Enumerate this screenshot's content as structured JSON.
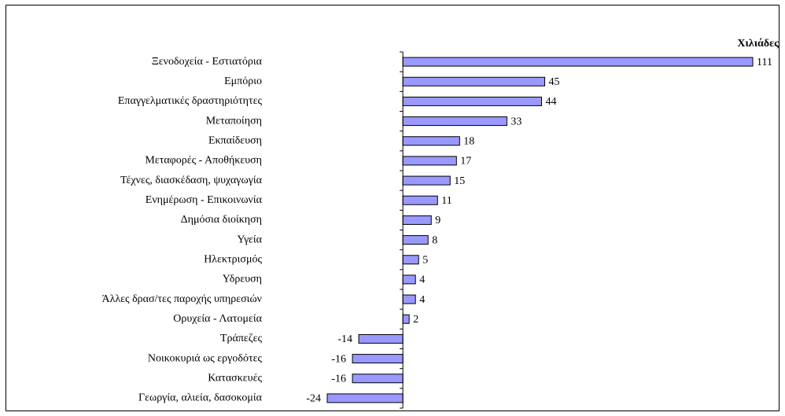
{
  "chart_data": {
    "type": "barh",
    "unit_label": "Χιλιάδες",
    "color": "#9999ff",
    "categories": [
      "Ξενοδοχεία - Εστιατόρια",
      "Εμπόριο",
      "Επαγγελματικές δραστηριότητες",
      "Μεταποίηση",
      "Εκπαίδευση",
      "Μεταφορές - Αποθήκευση",
      "Τέχνες, διασκέδαση, ψυχαγωγία",
      "Ενημέρωση - Επικοινωνία",
      "Δημόσια διοίκηση",
      "Υγεία",
      "Ηλεκτρισμός",
      "Υδρευση",
      "Άλλες δρασ/τες παροχής υπηρεσιών",
      "Ορυχεία  - Λατομεία",
      "Τράπεζες",
      "Νοικοκυριά ως εργοδότες",
      "Κατασκευές",
      "Γεωργία, αλιεία, δασοκομία"
    ],
    "values": [
      111,
      45,
      44,
      33,
      18,
      17,
      15,
      11,
      9,
      8,
      5,
      4,
      4,
      2,
      -14,
      -16,
      -16,
      -24
    ]
  }
}
